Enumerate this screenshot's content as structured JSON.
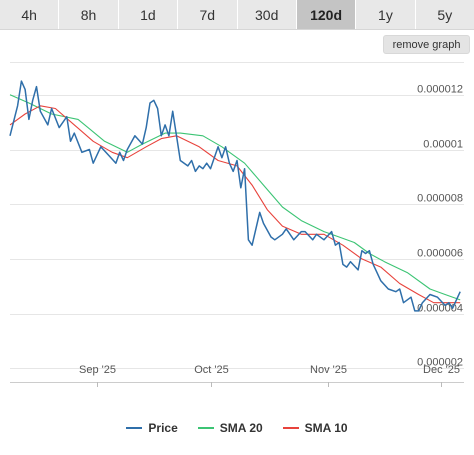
{
  "tabs": [
    {
      "label": "4h",
      "active": false
    },
    {
      "label": "8h",
      "active": false
    },
    {
      "label": "1d",
      "active": false
    },
    {
      "label": "7d",
      "active": false
    },
    {
      "label": "30d",
      "active": false
    },
    {
      "label": "120d",
      "active": true
    },
    {
      "label": "1y",
      "active": false
    },
    {
      "label": "5y",
      "active": false
    }
  ],
  "remove_graph_label": "remove graph",
  "colors": {
    "price": "#2f6faa",
    "sma20": "#3cc474",
    "sma10": "#e8433c"
  },
  "chart_data": {
    "type": "line",
    "title": "",
    "xlabel": "",
    "ylabel": "",
    "x_range": [
      "2025-08-09",
      "2025-12-07"
    ],
    "ylim": [
      1.5e-06,
      1.32e-05
    ],
    "y_ticks": [
      {
        "value": 1.2e-05,
        "label": "0.000012"
      },
      {
        "value": 1e-05,
        "label": "0.00001"
      },
      {
        "value": 8e-06,
        "label": "0.000008"
      },
      {
        "value": 6e-06,
        "label": "0.000006"
      },
      {
        "value": 4e-06,
        "label": "0.000004"
      },
      {
        "value": 2e-06,
        "label": "0.000002"
      }
    ],
    "x_ticks": [
      {
        "date": "2025-09-01",
        "label": "Sep '25"
      },
      {
        "date": "2025-10-01",
        "label": "Oct '25"
      },
      {
        "date": "2025-11-01",
        "label": "Nov '25"
      },
      {
        "date": "2025-12-01",
        "label": "Dec '25"
      }
    ],
    "grid": true,
    "legend_position": "bottom",
    "series": [
      {
        "name": "Price",
        "color": "#2f6faa",
        "points": [
          [
            "2025-08-09",
            1.05e-05
          ],
          [
            "2025-08-11",
            1.16e-05
          ],
          [
            "2025-08-12",
            1.25e-05
          ],
          [
            "2025-08-13",
            1.22e-05
          ],
          [
            "2025-08-14",
            1.11e-05
          ],
          [
            "2025-08-15",
            1.18e-05
          ],
          [
            "2025-08-16",
            1.23e-05
          ],
          [
            "2025-08-17",
            1.14e-05
          ],
          [
            "2025-08-19",
            1.09e-05
          ],
          [
            "2025-08-20",
            1.15e-05
          ],
          [
            "2025-08-22",
            1.08e-05
          ],
          [
            "2025-08-24",
            1.12e-05
          ],
          [
            "2025-08-25",
            1.03e-05
          ],
          [
            "2025-08-26",
            1.06e-05
          ],
          [
            "2025-08-28",
            9.9e-06
          ],
          [
            "2025-08-30",
            1e-05
          ],
          [
            "2025-08-31",
            9.5e-06
          ],
          [
            "2025-09-02",
            1.01e-05
          ],
          [
            "2025-09-04",
            9.8e-06
          ],
          [
            "2025-09-06",
            9.5e-06
          ],
          [
            "2025-09-07",
            9.9e-06
          ],
          [
            "2025-09-08",
            9.6e-06
          ],
          [
            "2025-09-09",
            1e-05
          ],
          [
            "2025-09-11",
            1.05e-05
          ],
          [
            "2025-09-13",
            1.02e-05
          ],
          [
            "2025-09-14",
            1.08e-05
          ],
          [
            "2025-09-15",
            1.17e-05
          ],
          [
            "2025-09-16",
            1.18e-05
          ],
          [
            "2025-09-17",
            1.15e-05
          ],
          [
            "2025-09-18",
            1.05e-05
          ],
          [
            "2025-09-19",
            1.09e-05
          ],
          [
            "2025-09-20",
            1.05e-05
          ],
          [
            "2025-09-21",
            1.14e-05
          ],
          [
            "2025-09-22",
            1.05e-05
          ],
          [
            "2025-09-23",
            9.6e-06
          ],
          [
            "2025-09-25",
            9.4e-06
          ],
          [
            "2025-09-26",
            9.6e-06
          ],
          [
            "2025-09-27",
            9.2e-06
          ],
          [
            "2025-09-28",
            9.4e-06
          ],
          [
            "2025-09-29",
            9.3e-06
          ],
          [
            "2025-09-30",
            9.5e-06
          ],
          [
            "2025-10-01",
            9.3e-06
          ],
          [
            "2025-10-02",
            9.7e-06
          ],
          [
            "2025-10-03",
            1.01e-05
          ],
          [
            "2025-10-04",
            9.7e-06
          ],
          [
            "2025-10-05",
            1.01e-05
          ],
          [
            "2025-10-06",
            9.5e-06
          ],
          [
            "2025-10-07",
            9.2e-06
          ],
          [
            "2025-10-08",
            9.6e-06
          ],
          [
            "2025-10-09",
            8.6e-06
          ],
          [
            "2025-10-10",
            9.3e-06
          ],
          [
            "2025-10-11",
            6.7e-06
          ],
          [
            "2025-10-12",
            6.5e-06
          ],
          [
            "2025-10-14",
            7.7e-06
          ],
          [
            "2025-10-15",
            7.3e-06
          ],
          [
            "2025-10-17",
            6.8e-06
          ],
          [
            "2025-10-18",
            6.7e-06
          ],
          [
            "2025-10-20",
            6.9e-06
          ],
          [
            "2025-10-21",
            7.1e-06
          ],
          [
            "2025-10-23",
            6.7e-06
          ],
          [
            "2025-10-25",
            7e-06
          ],
          [
            "2025-10-26",
            7e-06
          ],
          [
            "2025-10-28",
            6.7e-06
          ],
          [
            "2025-10-29",
            6.9e-06
          ],
          [
            "2025-10-31",
            6.7e-06
          ],
          [
            "2025-11-02",
            7e-06
          ],
          [
            "2025-11-03",
            6.5e-06
          ],
          [
            "2025-11-04",
            6.6e-06
          ],
          [
            "2025-11-05",
            5.8e-06
          ],
          [
            "2025-11-06",
            5.7e-06
          ],
          [
            "2025-11-07",
            5.9e-06
          ],
          [
            "2025-11-09",
            5.6e-06
          ],
          [
            "2025-11-10",
            6.3e-06
          ],
          [
            "2025-11-11",
            6.2e-06
          ],
          [
            "2025-11-12",
            6.3e-06
          ],
          [
            "2025-11-13",
            5.8e-06
          ],
          [
            "2025-11-14",
            5.5e-06
          ],
          [
            "2025-11-15",
            5.2e-06
          ],
          [
            "2025-11-17",
            4.9e-06
          ],
          [
            "2025-11-19",
            4.8e-06
          ],
          [
            "2025-11-20",
            4.9e-06
          ],
          [
            "2025-11-21",
            4.4e-06
          ],
          [
            "2025-11-23",
            4.6e-06
          ],
          [
            "2025-11-24",
            4.1e-06
          ],
          [
            "2025-11-25",
            4.1e-06
          ],
          [
            "2025-11-26",
            4.4e-06
          ],
          [
            "2025-11-28",
            4.7e-06
          ],
          [
            "2025-11-30",
            4.6e-06
          ],
          [
            "2025-12-02",
            4.3e-06
          ],
          [
            "2025-12-03",
            4.4e-06
          ],
          [
            "2025-12-04",
            4.2e-06
          ],
          [
            "2025-12-05",
            4.5e-06
          ],
          [
            "2025-12-06",
            4.8e-06
          ]
        ]
      },
      {
        "name": "SMA 20",
        "color": "#3cc474",
        "points": [
          [
            "2025-08-09",
            1.2e-05
          ],
          [
            "2025-08-14",
            1.17e-05
          ],
          [
            "2025-08-20",
            1.13e-05
          ],
          [
            "2025-08-27",
            1.11e-05
          ],
          [
            "2025-09-03",
            1.03e-05
          ],
          [
            "2025-09-09",
            9.9e-06
          ],
          [
            "2025-09-13",
            1.02e-05
          ],
          [
            "2025-09-19",
            1.06e-05
          ],
          [
            "2025-09-23",
            1.06e-05
          ],
          [
            "2025-09-29",
            1.05e-05
          ],
          [
            "2025-10-04",
            1.01e-05
          ],
          [
            "2025-10-10",
            9.5e-06
          ],
          [
            "2025-10-15",
            8.7e-06
          ],
          [
            "2025-10-20",
            7.9e-06
          ],
          [
            "2025-10-25",
            7.4e-06
          ],
          [
            "2025-10-31",
            7e-06
          ],
          [
            "2025-11-04",
            6.8e-06
          ],
          [
            "2025-11-08",
            6.6e-06
          ],
          [
            "2025-11-12",
            6.2e-06
          ],
          [
            "2025-11-16",
            5.9e-06
          ],
          [
            "2025-11-22",
            5.5e-06
          ],
          [
            "2025-11-28",
            4.9e-06
          ],
          [
            "2025-12-02",
            4.7e-06
          ],
          [
            "2025-12-06",
            4.5e-06
          ]
        ]
      },
      {
        "name": "SMA 10",
        "color": "#e8433c",
        "points": [
          [
            "2025-08-09",
            1.09e-05
          ],
          [
            "2025-08-13",
            1.13e-05
          ],
          [
            "2025-08-17",
            1.16e-05
          ],
          [
            "2025-08-21",
            1.15e-05
          ],
          [
            "2025-08-26",
            1.09e-05
          ],
          [
            "2025-08-31",
            1.03e-05
          ],
          [
            "2025-09-05",
            9.9e-06
          ],
          [
            "2025-09-09",
            9.7e-06
          ],
          [
            "2025-09-14",
            1.01e-05
          ],
          [
            "2025-09-18",
            1.04e-05
          ],
          [
            "2025-09-22",
            1.05e-05
          ],
          [
            "2025-09-28",
            1.01e-05
          ],
          [
            "2025-10-03",
            9.6e-06
          ],
          [
            "2025-10-08",
            9.4e-06
          ],
          [
            "2025-10-12",
            8.7e-06
          ],
          [
            "2025-10-16",
            7.8e-06
          ],
          [
            "2025-10-20",
            7.2e-06
          ],
          [
            "2025-10-25",
            6.9e-06
          ],
          [
            "2025-10-31",
            6.9e-06
          ],
          [
            "2025-11-05",
            6.5e-06
          ],
          [
            "2025-11-10",
            6e-06
          ],
          [
            "2025-11-15",
            5.7e-06
          ],
          [
            "2025-11-20",
            5.1e-06
          ],
          [
            "2025-11-25",
            4.7e-06
          ],
          [
            "2025-11-29",
            4.4e-06
          ],
          [
            "2025-12-02",
            4.4e-06
          ],
          [
            "2025-12-06",
            4.4e-06
          ]
        ]
      }
    ]
  }
}
